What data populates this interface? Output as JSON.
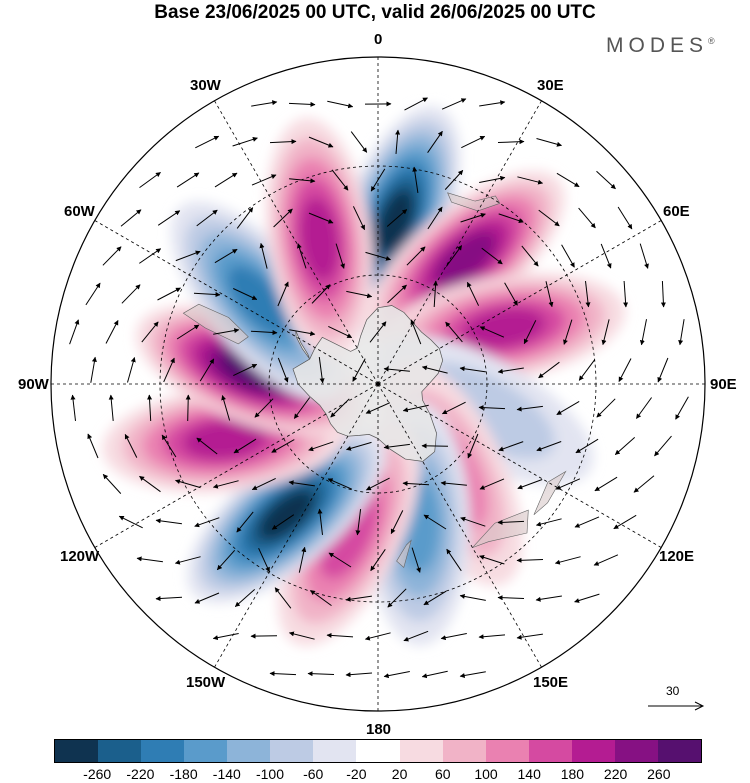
{
  "title": "Base 23/06/2025 00 UTC, valid 26/06/2025 00 UTC",
  "brand": "MODES",
  "brand_mark": "®",
  "longitude_labels": [
    "0",
    "30E",
    "60E",
    "90E",
    "120E",
    "150E",
    "180",
    "150W",
    "120W",
    "90W",
    "60W",
    "30W"
  ],
  "reference_vector": {
    "value": "30"
  },
  "colorbar": {
    "colors": [
      "#0f3350",
      "#1b5f8c",
      "#2f7db4",
      "#5a9bcb",
      "#8db4d9",
      "#bdcbe4",
      "#e2e4f1",
      "#ffffff",
      "#f7dbe1",
      "#f1b3c7",
      "#ea81b1",
      "#d54aa1",
      "#b41c92",
      "#861183",
      "#56106f"
    ],
    "tick_labels": [
      "-260",
      "-220",
      "-180",
      "-140",
      "-100",
      "-60",
      "-20",
      "20",
      "60",
      "100",
      "140",
      "180",
      "220",
      "260"
    ]
  },
  "map": {
    "projection": "polar-stereographic-south",
    "anomaly_centers": [
      {
        "lon": 6,
        "lat": -45,
        "value": -270
      },
      {
        "lon": 35,
        "lat": -48,
        "value": 220
      },
      {
        "lon": 66,
        "lat": -52,
        "value": 170
      },
      {
        "lon": 104,
        "lat": -60,
        "value": -80
      },
      {
        "lon": 140,
        "lat": -58,
        "value": 90
      },
      {
        "lon": 164,
        "lat": -50,
        "value": -150
      },
      {
        "lon": -169,
        "lat": -48,
        "value": 160
      },
      {
        "lon": -145,
        "lat": -46,
        "value": -250
      },
      {
        "lon": -110,
        "lat": -45,
        "value": 190
      },
      {
        "lon": -84,
        "lat": -55,
        "value": 250
      },
      {
        "lon": -55,
        "lat": -50,
        "value": -170
      },
      {
        "lon": -22,
        "lat": -47,
        "value": 170
      }
    ]
  }
}
